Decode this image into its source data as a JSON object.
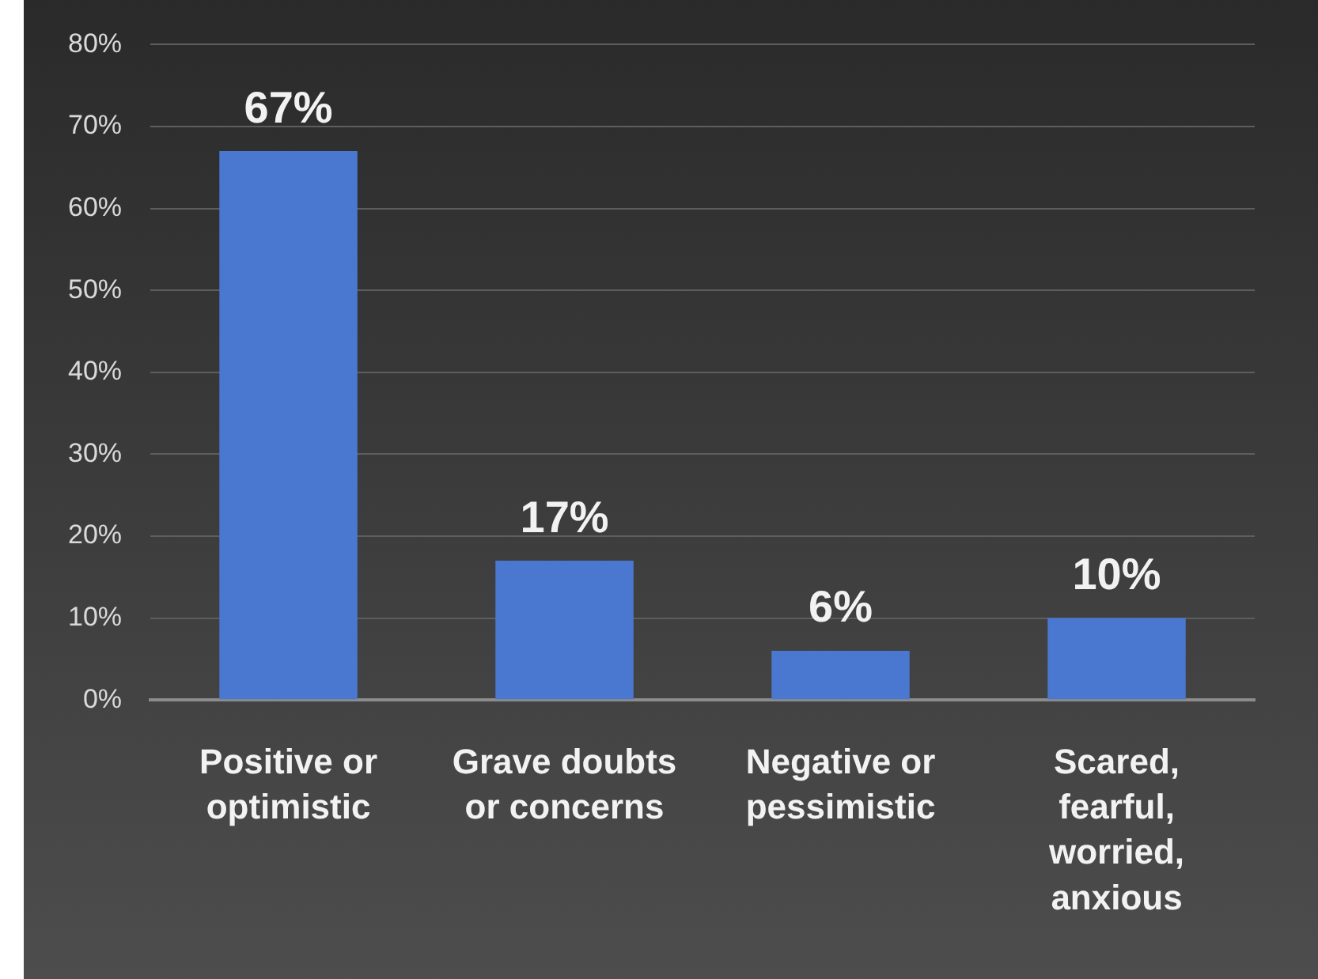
{
  "chart_data": {
    "type": "bar",
    "categories": [
      "Positive or optimistic",
      "Grave doubts or concerns",
      "Negative or pessimistic",
      "Scared, fearful, worried, anxious"
    ],
    "values": [
      67,
      17,
      6,
      10
    ],
    "color": "#4a78d0",
    "ylim": [
      0,
      80
    ],
    "yticks": [
      {
        "value": 0,
        "label": "0%"
      },
      {
        "value": 10,
        "label": "10%"
      },
      {
        "value": 20,
        "label": "20%"
      },
      {
        "value": 30,
        "label": "30%"
      },
      {
        "value": 40,
        "label": "40%"
      },
      {
        "value": 50,
        "label": "50%"
      },
      {
        "value": 60,
        "label": "60%"
      },
      {
        "value": 70,
        "label": "70%"
      },
      {
        "value": 80,
        "label": "80%"
      }
    ],
    "grid": "y",
    "value_labels": [
      "67%",
      "17%",
      "6%",
      "10%"
    ]
  }
}
